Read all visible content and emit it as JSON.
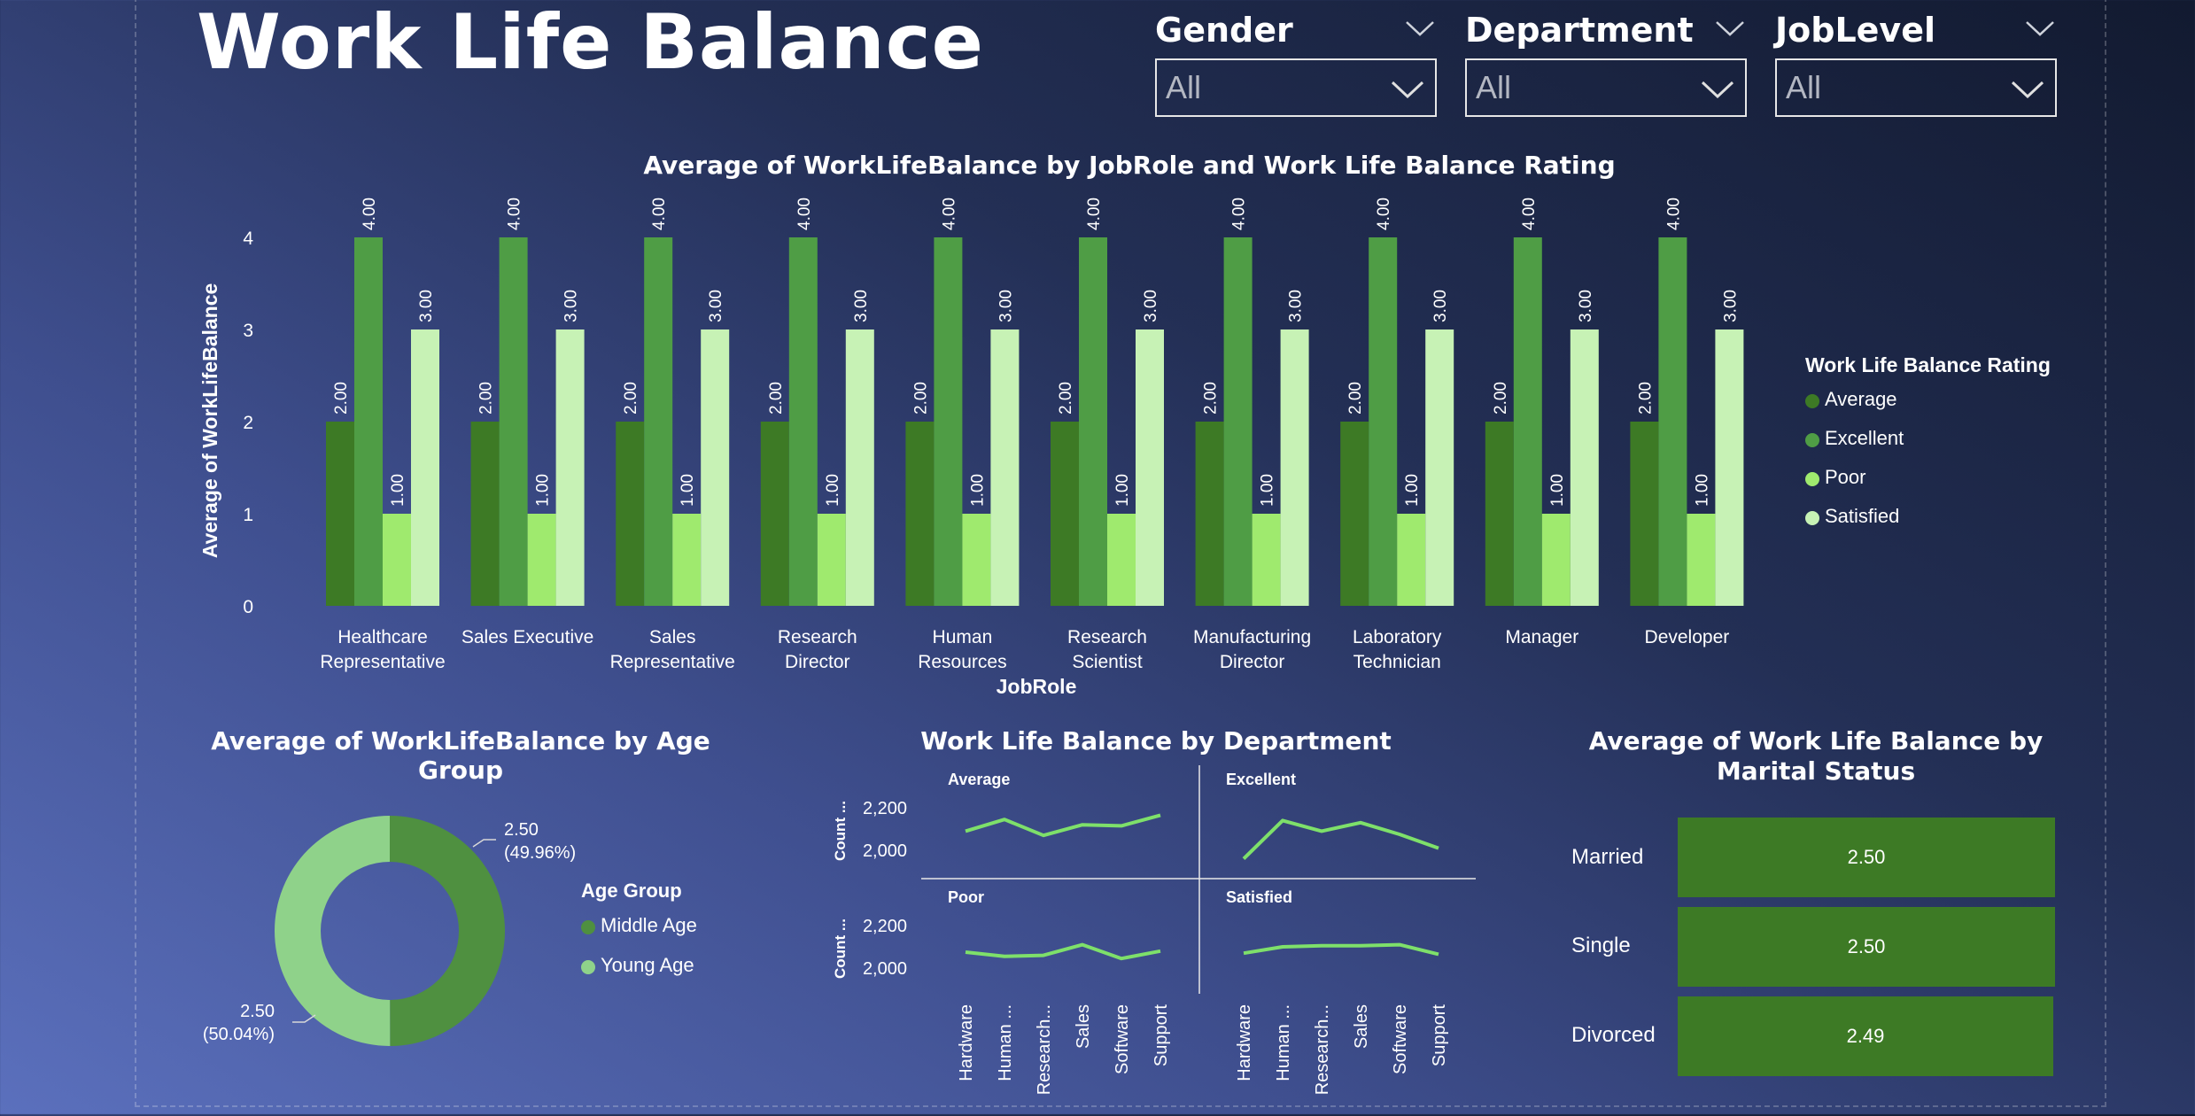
{
  "title": "Work Life Balance",
  "slicers": [
    {
      "label": "Gender",
      "value": "All"
    },
    {
      "label": "Department",
      "value": "All"
    },
    {
      "label": "JobLevel",
      "value": "All"
    }
  ],
  "colors": {
    "Average": "#3d7a25",
    "Excellent": "#4f9d45",
    "Poor": "#9fea6e",
    "Satisfied": "#c7f2b5",
    "MiddleAge": "#4f9040",
    "YoungAge": "#8fd28a",
    "MaritalBar": "#3d7a25",
    "Line": "#7ee06a"
  },
  "chart_data": [
    {
      "type": "bar",
      "title": "Average of WorkLifeBalance by JobRole and Work Life Balance Rating",
      "xlabel": "JobRole",
      "ylabel": "Average of WorkLifeBalance",
      "ylim": [
        0,
        4
      ],
      "yticks": [
        "0",
        "1",
        "2",
        "3",
        "4"
      ],
      "categories": [
        [
          "Healthcare",
          "Representative"
        ],
        [
          "Sales Executive"
        ],
        [
          "Sales",
          "Representative"
        ],
        [
          "Research",
          "Director"
        ],
        [
          "Human",
          "Resources"
        ],
        [
          "Research",
          "Scientist"
        ],
        [
          "Manufacturing",
          "Director"
        ],
        [
          "Laboratory",
          "Technician"
        ],
        [
          "Manager"
        ],
        [
          "Developer"
        ]
      ],
      "series": [
        {
          "name": "Average",
          "values": [
            2,
            2,
            2,
            2,
            2,
            2,
            2,
            2,
            2,
            2
          ],
          "labels": [
            "2.00",
            "2.00",
            "2.00",
            "2.00",
            "2.00",
            "2.00",
            "2.00",
            "2.00",
            "2.00",
            "2.00"
          ]
        },
        {
          "name": "Excellent",
          "values": [
            4,
            4,
            4,
            4,
            4,
            4,
            4,
            4,
            4,
            4
          ],
          "labels": [
            "4.00",
            "4.00",
            "4.00",
            "4.00",
            "4.00",
            "4.00",
            "4.00",
            "4.00",
            "4.00",
            "4.00"
          ]
        },
        {
          "name": "Poor",
          "values": [
            1,
            1,
            1,
            1,
            1,
            1,
            1,
            1,
            1,
            1
          ],
          "labels": [
            "1.00",
            "1.00",
            "1.00",
            "1.00",
            "1.00",
            "1.00",
            "1.00",
            "1.00",
            "1.00",
            "1.00"
          ]
        },
        {
          "name": "Satisfied",
          "values": [
            3,
            3,
            3,
            3,
            3,
            3,
            3,
            3,
            3,
            3
          ],
          "labels": [
            "3.00",
            "3.00",
            "3.00",
            "3.00",
            "3.00",
            "3.00",
            "3.00",
            "3.00",
            "3.00",
            "3.00"
          ]
        }
      ],
      "legend_title": "Work Life Balance Rating",
      "legend": [
        "Average",
        "Excellent",
        "Poor",
        "Satisfied"
      ],
      "legend_position": "right"
    },
    {
      "type": "pie",
      "title": "Average of WorkLifeBalance by Age Group",
      "legend_title": "Age Group",
      "slices": [
        {
          "name": "Middle Age",
          "value": 2.5,
          "label": "2.50",
          "percent_label": "(49.96%)"
        },
        {
          "name": "Young Age",
          "value": 2.5,
          "label": "2.50",
          "percent_label": "(50.04%)"
        }
      ],
      "shares": [
        49.96,
        50.04
      ],
      "legend_position": "right"
    },
    {
      "type": "line",
      "title": "Work Life Balance by Department",
      "categories": [
        "Hardware",
        "Human ...",
        "Research...",
        "Sales",
        "Software",
        "Support"
      ],
      "ylabel": "Count ...",
      "yticks": [
        "2,200",
        "2,000"
      ],
      "ylim": [
        1900,
        2300
      ],
      "panels": [
        {
          "name": "Average",
          "values": [
            2090,
            2145,
            2070,
            2120,
            2115,
            2165
          ]
        },
        {
          "name": "Excellent",
          "values": [
            1960,
            2140,
            2090,
            2130,
            2075,
            2010
          ]
        },
        {
          "name": "Poor",
          "values": [
            2075,
            2055,
            2060,
            2110,
            2045,
            2080
          ]
        },
        {
          "name": "Satisfied",
          "values": [
            2070,
            2100,
            2105,
            2105,
            2110,
            2065
          ]
        }
      ]
    },
    {
      "type": "bar",
      "orientation": "horizontal",
      "title": "Average of Work Life Balance by Marital Status",
      "categories": [
        "Married",
        "Single",
        "Divorced"
      ],
      "values": [
        2.5,
        2.5,
        2.49
      ],
      "labels": [
        "2.50",
        "2.50",
        "2.49"
      ]
    }
  ]
}
